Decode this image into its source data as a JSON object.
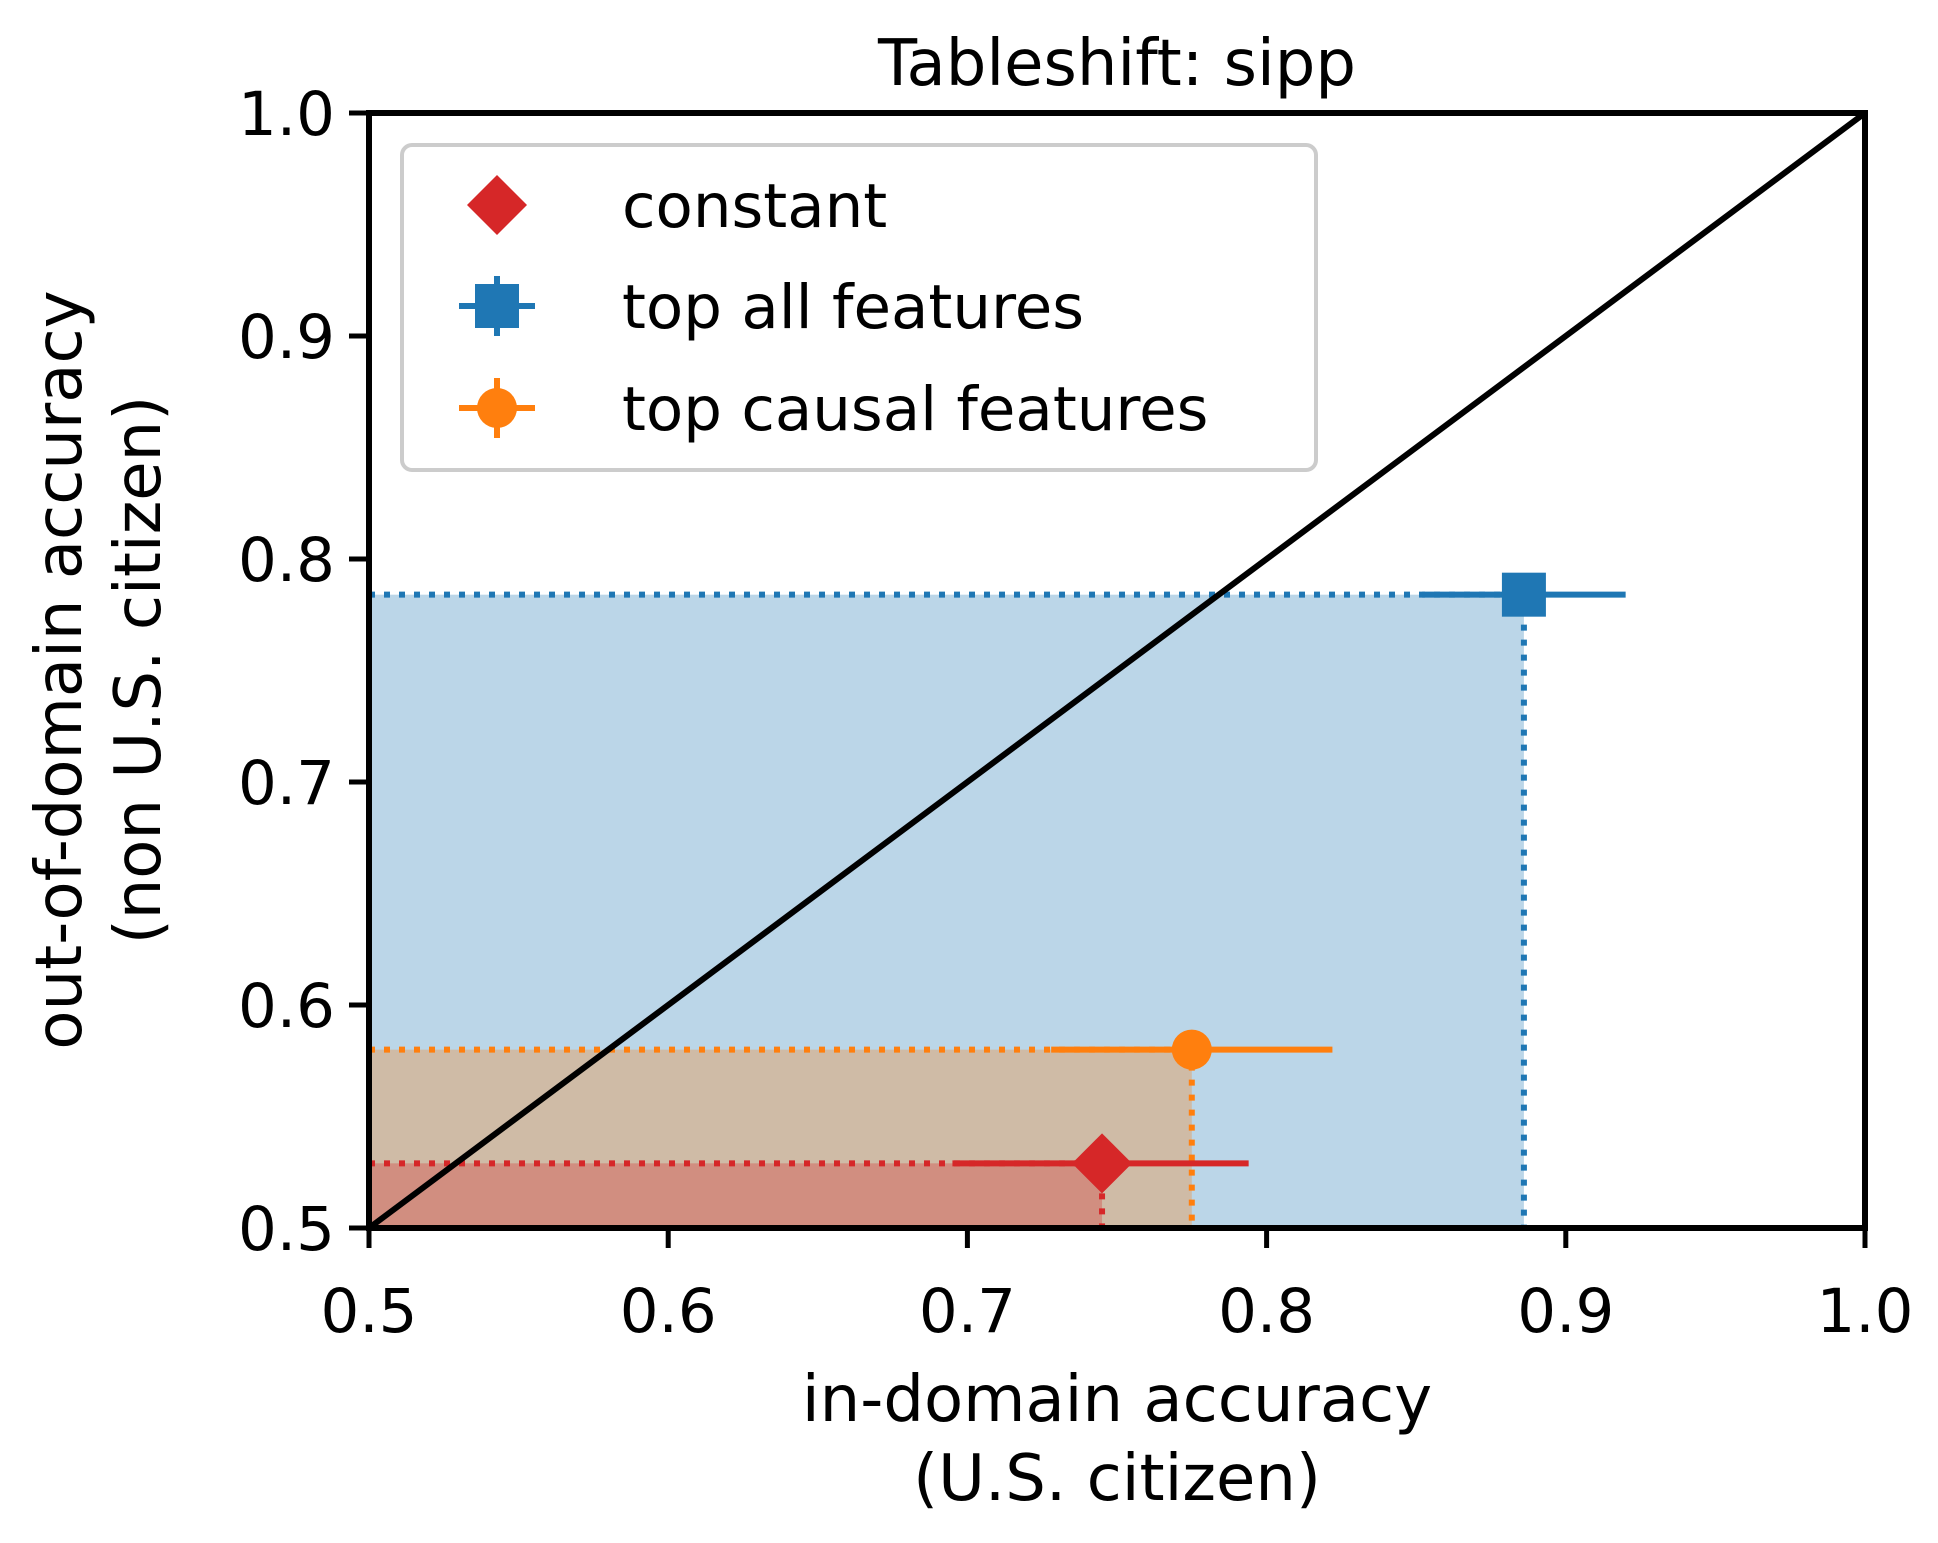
{
  "chart_data": {
    "type": "scatter",
    "title": "Tableshift: sipp",
    "xlabel": [
      "in-domain accuracy",
      "(U.S. citizen)"
    ],
    "ylabel": [
      "out-of-domain accuracy",
      "(non U.S. citizen)"
    ],
    "xlim": [
      0.5,
      1.0
    ],
    "ylim": [
      0.5,
      1.0
    ],
    "xticks": [
      "0.5",
      "0.6",
      "0.7",
      "0.8",
      "0.9",
      "1.0"
    ],
    "yticks": [
      "0.5",
      "0.6",
      "0.7",
      "0.8",
      "0.9",
      "1.0"
    ],
    "grid": false,
    "legend_position": "top-left",
    "diagonal": {
      "from": [
        0.5,
        0.5
      ],
      "to": [
        1.0,
        1.0
      ],
      "color": "#000000"
    },
    "series": [
      {
        "name": "constant",
        "marker": "diamond",
        "color": "#d62728",
        "fill": "#d62728",
        "x": 0.745,
        "y": 0.529,
        "xerr": [
          0.695,
          0.794
        ],
        "yerr": [
          0.529,
          0.529
        ]
      },
      {
        "name": "top all features",
        "marker": "square",
        "color": "#1f77b4",
        "fill": "#1f77b4",
        "x": 0.886,
        "y": 0.784,
        "xerr": [
          0.852,
          0.92
        ],
        "yerr": [
          0.781,
          0.787
        ]
      },
      {
        "name": "top causal features",
        "marker": "circle",
        "color": "#ff7f0e",
        "fill": "#ff7f0e",
        "x": 0.775,
        "y": 0.58,
        "xerr": [
          0.728,
          0.822
        ],
        "yerr": [
          0.577,
          0.583
        ]
      }
    ]
  }
}
